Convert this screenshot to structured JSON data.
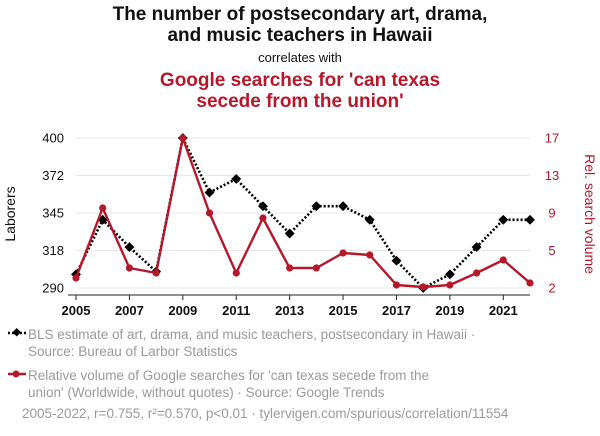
{
  "chart_data": {
    "type": "line",
    "title_line1": "The number of postsecondary art, drama,",
    "title_line2": "and music teachers in Hawaii",
    "correlates": "correlates with",
    "title2_line1": "Google searches for 'can texas",
    "title2_line2": "secede from the union'",
    "ylabel_left": "Laborers",
    "ylabel_right": "Rel. search volume",
    "x": [
      2005,
      2006,
      2007,
      2008,
      2009,
      2010,
      2011,
      2012,
      2013,
      2014,
      2015,
      2016,
      2017,
      2018,
      2019,
      2020,
      2021,
      2022
    ],
    "xticks": [
      "2005",
      "2007",
      "2009",
      "2011",
      "2013",
      "2015",
      "2017",
      "2019",
      "2021"
    ],
    "yticks_left": [
      "400",
      "372",
      "345",
      "318",
      "290"
    ],
    "yticks_right": [
      "17",
      "13",
      "9",
      "5",
      "2"
    ],
    "ylim_left": [
      290,
      400
    ],
    "ylim_right": [
      2,
      17
    ],
    "grid": true,
    "series": [
      {
        "values": [
          300,
          340,
          320,
          302,
          400,
          360,
          370,
          350,
          330,
          350,
          350,
          340,
          310,
          290,
          300,
          320,
          340,
          340
        ],
        "color": "#000000",
        "style": "dotted",
        "marker": "diamond",
        "axis": "left"
      },
      {
        "values": [
          3,
          10,
          4,
          3.5,
          17,
          9.5,
          3.5,
          9,
          4,
          4,
          5.5,
          5.3,
          2.3,
          2.1,
          2.3,
          3.5,
          4.8,
          2.5
        ],
        "color": "#b5182b",
        "style": "solid",
        "marker": "circle",
        "axis": "right"
      }
    ],
    "legend_1_line1": "BLS estimate of art, drama, and music teachers, postsecondary in Hawaii ·",
    "legend_1_line2": "Source: Bureau of Larbor Statistics",
    "legend_2_line1": "Relative volume of Google searches for 'can texas secede from the",
    "legend_2_line2": "union' (Worldwide, without quotes) · Source: Google Trends",
    "footer": "2005-2022, r=0.755, r²=0.570, p<0.01 · tylervigen.com/spurious/correlation/11554"
  }
}
